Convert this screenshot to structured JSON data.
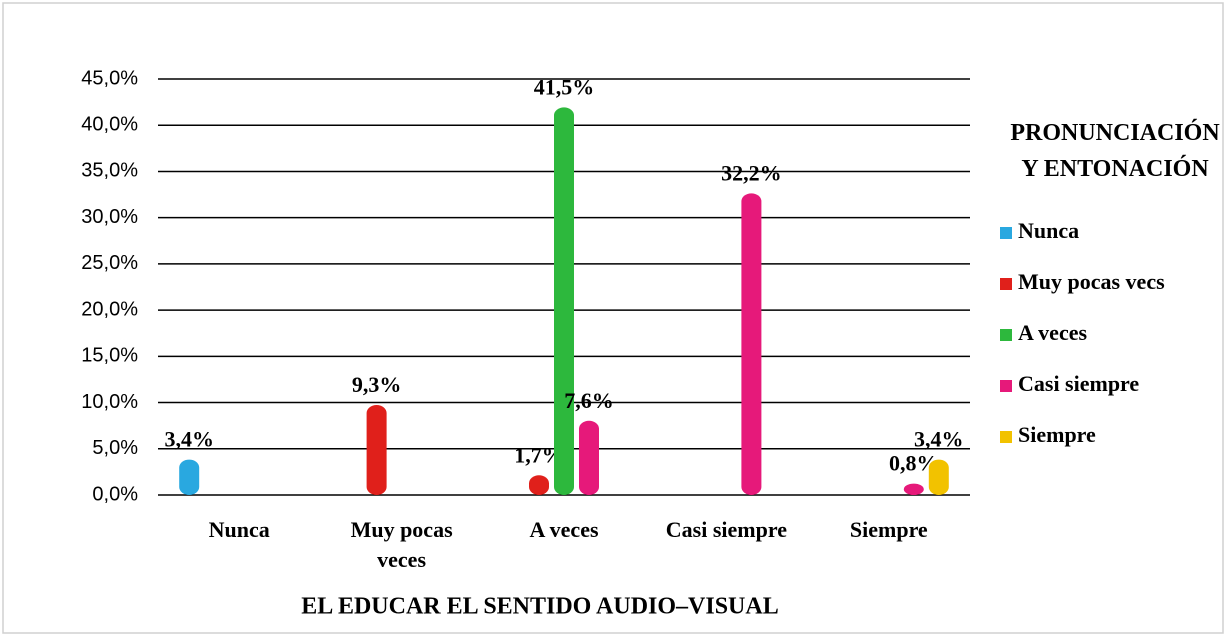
{
  "chart_data": {
    "type": "bar",
    "legend_title": "PRONUNCIACIÓN Y ENTONACIÓN",
    "x_label": "EL EDUCAR EL SENTIDO AUDIO–VISUAL",
    "categories": [
      "Nunca",
      "Muy pocas veces",
      "A veces",
      "Casi siempre",
      "Siempre"
    ],
    "series": [
      {
        "name": "Nunca",
        "color": "#29a8e0",
        "values": [
          3.4,
          0,
          0,
          0,
          0
        ],
        "value_labels": [
          "3,4%",
          null,
          null,
          null,
          null
        ]
      },
      {
        "name": "Muy pocas vecs",
        "color": "#e0201b",
        "values": [
          0,
          9.3,
          1.7,
          0,
          0
        ],
        "value_labels": [
          null,
          "9,3%",
          "1,7%",
          null,
          null
        ]
      },
      {
        "name": "A veces",
        "color": "#2db83d",
        "values": [
          0,
          0,
          41.5,
          0,
          0
        ],
        "value_labels": [
          null,
          null,
          "41,5%",
          null,
          null
        ]
      },
      {
        "name": "Casi siempre",
        "color": "#e6197a",
        "values": [
          0,
          0,
          7.6,
          32.2,
          0.8
        ],
        "value_labels": [
          null,
          null,
          "7,6%",
          "32,2%",
          "0,8%"
        ]
      },
      {
        "name": "Siempre",
        "color": "#f2c200",
        "values": [
          0,
          0,
          0,
          0,
          3.4
        ],
        "value_labels": [
          null,
          null,
          null,
          null,
          "3,4%"
        ]
      }
    ],
    "ylim": [
      0,
      45
    ],
    "yticks": [
      {
        "value": 0,
        "label": "0,0%"
      },
      {
        "value": 5,
        "label": "5,0%"
      },
      {
        "value": 10,
        "label": "10,0%"
      },
      {
        "value": 15,
        "label": "15,0%"
      },
      {
        "value": 20,
        "label": "20,0%"
      },
      {
        "value": 25,
        "label": "25,0%"
      },
      {
        "value": 30,
        "label": "30,0%"
      },
      {
        "value": 35,
        "label": "35,0%"
      },
      {
        "value": 40,
        "label": "40,0%"
      },
      {
        "value": 45,
        "label": "45,0%"
      }
    ],
    "grid": true,
    "legend": "right"
  }
}
